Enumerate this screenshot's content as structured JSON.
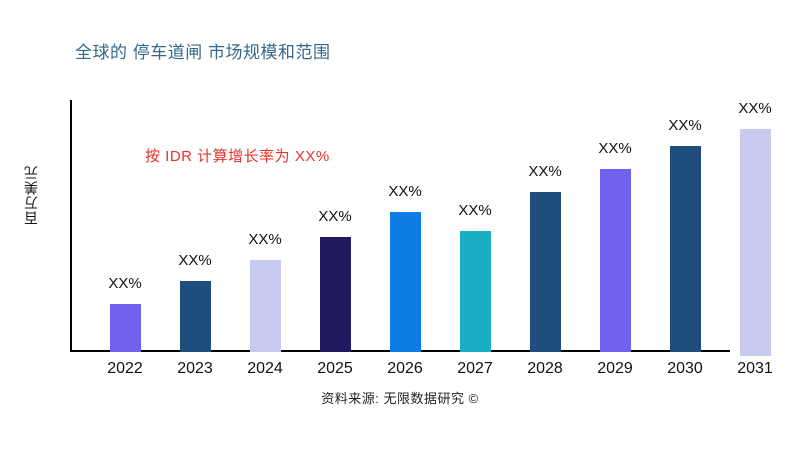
{
  "page": {
    "title": "全球的 停车道闸 市场规模和范围",
    "source": "资料来源: 无限数据研究 ©"
  },
  "chart_data": {
    "type": "bar",
    "title": "全球的 停车道闸 市场规模和范围",
    "xlabel": "",
    "ylabel": "百万美元",
    "categories": [
      "2022",
      "2023",
      "2024",
      "2025",
      "2026",
      "2027",
      "2028",
      "2029",
      "2030",
      "2031"
    ],
    "values": [
      21,
      31,
      40,
      50,
      61,
      53,
      70,
      80,
      90,
      100
    ],
    "bar_labels": [
      "XX%",
      "XX%",
      "XX%",
      "XX%",
      "XX%",
      "XX%",
      "XX%",
      "XX%",
      "XX%",
      "XX%"
    ],
    "bar_colors": [
      "#6F63EE",
      "#1F4E7E",
      "#C9CAEF",
      "#221A5E",
      "#0E7CE4",
      "#18AEC4",
      "#1F4E7E",
      "#6F63EE",
      "#1F4E7E",
      "#C9CAEF"
    ],
    "ylim": [
      0,
      110
    ],
    "grid": false,
    "legend_position": "none",
    "annotation": {
      "text": "按 IDR 计算增长率为 XX%",
      "color": "#e8322a"
    }
  }
}
